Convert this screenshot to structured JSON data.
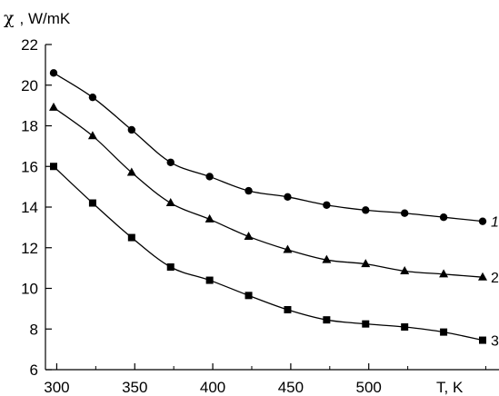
{
  "chart_data": {
    "type": "line",
    "title": "",
    "ylabel_symbol": "χ",
    "ylabel_unit": ", W/mK",
    "xlabel": "T, K",
    "xlim": [
      295,
      525
    ],
    "ylim": [
      6,
      22
    ],
    "x_ticks": [
      300,
      350,
      400,
      450,
      500
    ],
    "y_ticks": [
      6,
      8,
      10,
      12,
      14,
      16,
      18,
      20,
      22
    ],
    "grid": false,
    "x": [
      298,
      323,
      348,
      373,
      398,
      423,
      448,
      473,
      498,
      523,
      548,
      573
    ],
    "series": [
      {
        "name": "1",
        "marker": "circle",
        "values": [
          20.6,
          19.4,
          17.8,
          16.2,
          15.5,
          14.8,
          14.5,
          14.1,
          13.85,
          13.7,
          13.5,
          13.3
        ]
      },
      {
        "name": "2",
        "marker": "triangle",
        "values": [
          18.9,
          17.5,
          15.7,
          14.2,
          13.4,
          12.55,
          11.9,
          11.4,
          11.2,
          10.85,
          10.7,
          10.55
        ]
      },
      {
        "name": "3",
        "marker": "square",
        "values": [
          16.0,
          14.2,
          12.5,
          11.05,
          10.4,
          9.65,
          8.95,
          8.45,
          8.25,
          8.1,
          7.85,
          7.45
        ]
      }
    ],
    "colors": {
      "line": "#000000",
      "background": "#ffffff"
    }
  }
}
